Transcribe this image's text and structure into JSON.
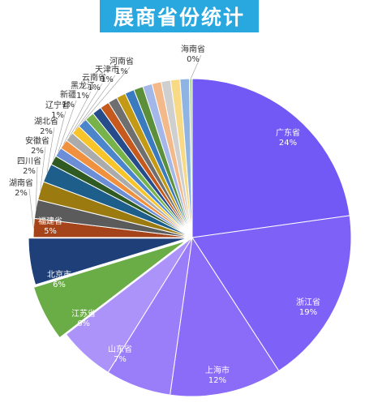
{
  "chart_data": {
    "type": "pie",
    "title": "展商省份统计",
    "slices": [
      {
        "label": "广东省",
        "value": 24,
        "pct": "24%",
        "color": "#7258f5"
      },
      {
        "label": "浙江省",
        "value": 19,
        "pct": "19%",
        "color": "#7e62f8"
      },
      {
        "label": "上海市",
        "value": 12,
        "pct": "12%",
        "color": "#8b6cf8"
      },
      {
        "label": "山东省",
        "value": 7,
        "pct": "7%",
        "color": "#9a7df9"
      },
      {
        "label": "江苏省",
        "value": 6,
        "pct": "6%",
        "color": "#ab93f9"
      },
      {
        "label": "北京市",
        "value": 6,
        "pct": "6%",
        "color": "#6aac45"
      },
      {
        "label": "福建省",
        "value": 5,
        "pct": "5%",
        "color": "#1f3f78"
      },
      {
        "label": "湖南省",
        "value": 2,
        "pct": "2%",
        "color": "#a5441a"
      },
      {
        "label": "四川省",
        "value": 2,
        "pct": "2%",
        "color": "#5b5b5b"
      },
      {
        "label": "安徽省",
        "value": 2,
        "pct": "2%",
        "color": "#9b7b10"
      },
      {
        "label": "湖北省",
        "value": 2,
        "pct": "2%",
        "color": "#1d5f8a"
      },
      {
        "label": "辽宁省",
        "value": 1,
        "pct": "1%",
        "color": "#2f5a22"
      },
      {
        "label": "新疆",
        "value": 1,
        "pct": "1%",
        "color": "#6c8ed6"
      },
      {
        "label": "黑龙江",
        "value": 1,
        "pct": "1%",
        "color": "#f0913f"
      },
      {
        "label": "云南省",
        "value": 1,
        "pct": "1%",
        "color": "#ababab"
      },
      {
        "label": "天津市",
        "value": 1,
        "pct": "1%",
        "color": "#f7c42a"
      },
      {
        "label": "河南省",
        "value": 1,
        "pct": "1%",
        "color": "#4b86cc"
      },
      {
        "label": "",
        "value": 1,
        "pct": "",
        "color": "#78b24a"
      },
      {
        "label": "",
        "value": 1,
        "pct": "",
        "color": "#264c8c"
      },
      {
        "label": "",
        "value": 1,
        "pct": "",
        "color": "#c65a1e"
      },
      {
        "label": "",
        "value": 1,
        "pct": "",
        "color": "#6f6f6f"
      },
      {
        "label": "",
        "value": 1,
        "pct": "",
        "color": "#c49a14"
      },
      {
        "label": "",
        "value": 1,
        "pct": "",
        "color": "#3a7abf"
      },
      {
        "label": "",
        "value": 1,
        "pct": "",
        "color": "#5b8f3a"
      },
      {
        "label": "",
        "value": 1,
        "pct": "",
        "color": "#a3b8e8"
      },
      {
        "label": "",
        "value": 1,
        "pct": "",
        "color": "#f4b98a"
      },
      {
        "label": "",
        "value": 1,
        "pct": "",
        "color": "#cfcfcf"
      },
      {
        "label": "",
        "value": 1,
        "pct": "",
        "color": "#f8da86"
      },
      {
        "label": "",
        "value": 1,
        "pct": "",
        "color": "#8fb4e3"
      },
      {
        "label": "海南省",
        "value": 0.3,
        "pct": "0%",
        "color": "#b8d99e"
      }
    ],
    "legend": "none"
  }
}
